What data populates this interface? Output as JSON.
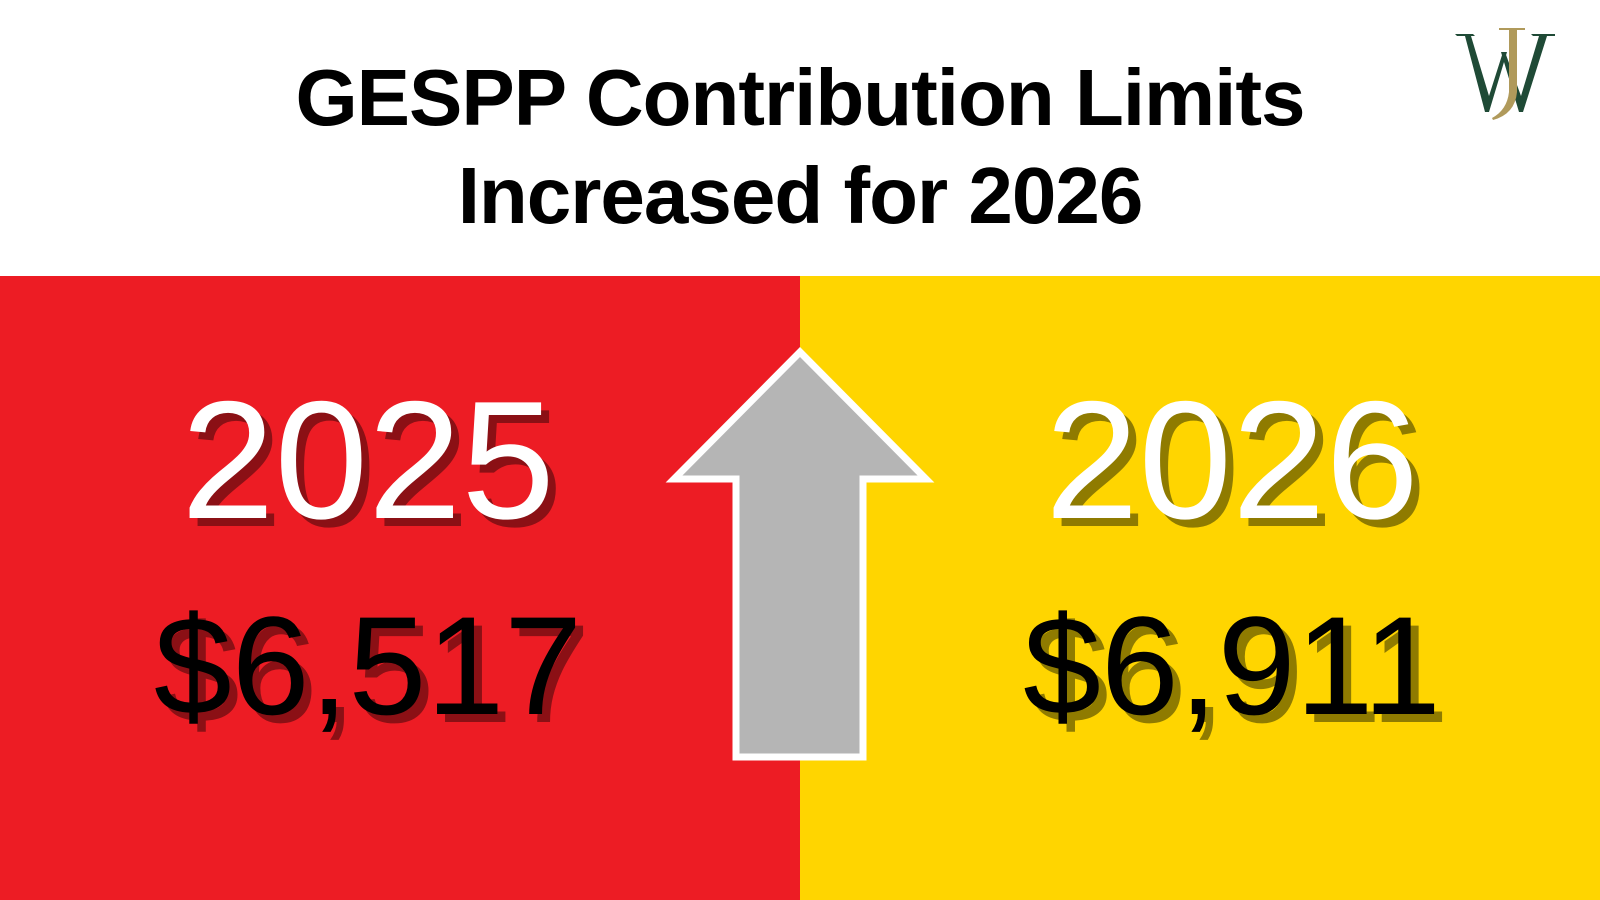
{
  "header": {
    "title_line1": "GESPP Contribution Limits",
    "title_line2": "Increased for 2026",
    "logo_text": "WJ"
  },
  "panels": [
    {
      "year": "2025",
      "amount": "$6,517",
      "color": "#ed1c24"
    },
    {
      "year": "2026",
      "amount": "$6,911",
      "color": "#ffd500"
    }
  ],
  "icons": {
    "arrow": "up-arrow-icon"
  },
  "colors": {
    "arrow_fill": "#b5b5b5",
    "logo_green": "#1f4a36",
    "logo_gold": "#b09a5b"
  }
}
